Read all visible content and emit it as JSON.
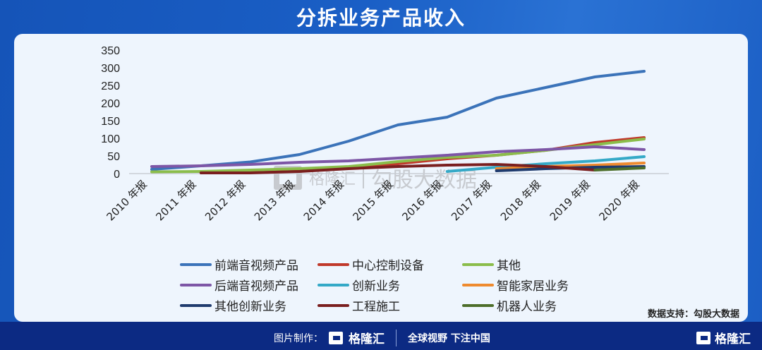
{
  "header": {
    "title": "分拆业务产品收入"
  },
  "chart_data": {
    "type": "line",
    "title": "分拆业务产品收入",
    "xlabel": "",
    "ylabel": "",
    "ylim": [
      0,
      350
    ],
    "yticks": [
      0,
      50,
      100,
      150,
      200,
      250,
      300,
      350
    ],
    "grid": false,
    "legend_position": "bottom",
    "categories": [
      "2010 年报",
      "2011 年报",
      "2012 年报",
      "2013 年报",
      "2014 年报",
      "2015 年报",
      "2016 年报",
      "2017 年报",
      "2018 年报",
      "2019 年报",
      "2020 年报"
    ],
    "series": [
      {
        "name": "前端音视频产品",
        "color": "#3b73b9",
        "values": [
          12,
          22,
          33,
          54,
          92,
          138,
          160,
          214,
          244,
          274,
          290
        ]
      },
      {
        "name": "中心控制设备",
        "color": "#c0392b",
        "values": [
          null,
          null,
          5,
          10,
          16,
          28,
          42,
          52,
          66,
          88,
          102
        ]
      },
      {
        "name": "其他",
        "color": "#8bbd4b",
        "values": [
          5,
          6,
          10,
          14,
          20,
          34,
          46,
          52,
          66,
          82,
          98
        ]
      },
      {
        "name": "后端音视频产品",
        "color": "#7d56a6",
        "values": [
          20,
          22,
          26,
          32,
          36,
          44,
          52,
          62,
          68,
          76,
          68
        ]
      },
      {
        "name": "创新业务",
        "color": "#34a9c7",
        "values": [
          null,
          null,
          null,
          null,
          null,
          null,
          6,
          18,
          28,
          36,
          48
        ]
      },
      {
        "name": "智能家居业务",
        "color": "#ee8a2f",
        "values": [
          null,
          null,
          null,
          null,
          null,
          null,
          null,
          14,
          20,
          24,
          30
        ]
      },
      {
        "name": "其他创新业务",
        "color": "#1f3b6e",
        "values": [
          null,
          null,
          null,
          null,
          null,
          null,
          null,
          8,
          14,
          18,
          20
        ]
      },
      {
        "name": "工程施工",
        "color": "#7a1f1f",
        "values": [
          null,
          2,
          2,
          6,
          14,
          20,
          24,
          26,
          20,
          10,
          null
        ]
      },
      {
        "name": "机器人业务",
        "color": "#4d6e2a",
        "values": [
          null,
          null,
          null,
          null,
          null,
          null,
          null,
          null,
          null,
          10,
          16
        ]
      }
    ]
  },
  "legend": {
    "items": [
      {
        "label": "前端音视频产品",
        "color": "#3b73b9"
      },
      {
        "label": "中心控制设备",
        "color": "#c0392b"
      },
      {
        "label": "其他",
        "color": "#8bbd4b"
      },
      {
        "label": "后端音视频产品",
        "color": "#7d56a6"
      },
      {
        "label": "创新业务",
        "color": "#34a9c7"
      },
      {
        "label": "智能家居业务",
        "color": "#ee8a2f"
      },
      {
        "label": "其他创新业务",
        "color": "#1f3b6e"
      },
      {
        "label": "工程施工",
        "color": "#7a1f1f"
      },
      {
        "label": "机器人业务",
        "color": "#4d6e2a"
      }
    ]
  },
  "watermark": {
    "brand": "格隆汇",
    "text": "勾股大数据"
  },
  "source": {
    "text": "数据支持：勾股大数据"
  },
  "footer": {
    "made_by_label": "图片制作：",
    "brand": "格隆汇",
    "slogan": "全球视野 下注中国",
    "corner_brand": "格隆汇"
  }
}
